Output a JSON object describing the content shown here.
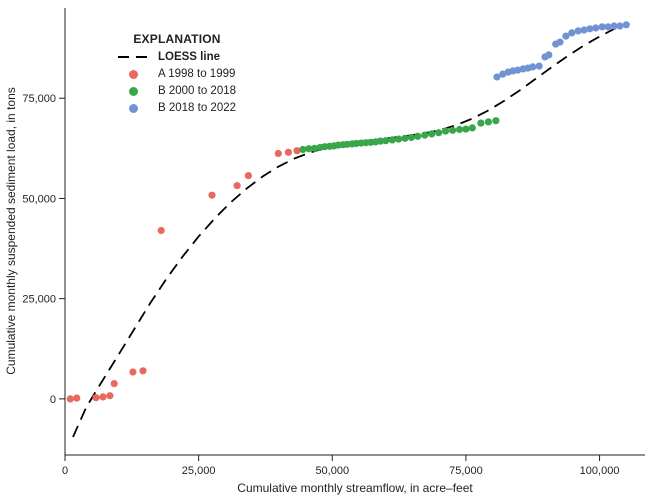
{
  "legend": {
    "title": "EXPLANATION",
    "items": [
      {
        "label": "LOESS line",
        "swatch": "dashed-line"
      },
      {
        "label": "A 1998 to 1999",
        "swatch": "dot"
      },
      {
        "label": "B 2000 to 2018",
        "swatch": "dot"
      },
      {
        "label": "B 2018 to 2022",
        "swatch": "dot"
      }
    ]
  },
  "chart_data": {
    "type": "scatter",
    "title": "",
    "xlabel": "Cumulative monthly streamflow, in acre–feet",
    "ylabel": "Cumulative monthly suspended sediment load, in tons",
    "xlim": [
      0,
      108500
    ],
    "ylim": [
      -14000,
      97500
    ],
    "grid": false,
    "legend_position": "top-left-inside",
    "x_ticks": [
      {
        "value": 0,
        "label": "0"
      },
      {
        "value": 25000,
        "label": "25,000"
      },
      {
        "value": 50000,
        "label": "50,000"
      },
      {
        "value": 75000,
        "label": "75,000"
      },
      {
        "value": 100000,
        "label": "100,000"
      }
    ],
    "y_ticks": [
      {
        "value": 0,
        "label": "0"
      },
      {
        "value": 25000,
        "label": "25,000"
      },
      {
        "value": 50000,
        "label": "50,000"
      },
      {
        "value": 75000,
        "label": "75,000"
      }
    ],
    "series": [
      {
        "name": "LOESS line",
        "type": "line",
        "style": "dashed",
        "color": "#000000",
        "points": [
          [
            1500,
            -9500
          ],
          [
            4000,
            -2000
          ],
          [
            7000,
            4500
          ],
          [
            10000,
            11000
          ],
          [
            13000,
            17500
          ],
          [
            16000,
            24000
          ],
          [
            19000,
            30000
          ],
          [
            22000,
            35500
          ],
          [
            25000,
            40500
          ],
          [
            28000,
            45000
          ],
          [
            31000,
            49000
          ],
          [
            34000,
            52500
          ],
          [
            37000,
            55500
          ],
          [
            40000,
            58000
          ],
          [
            43000,
            60000
          ],
          [
            46000,
            61500
          ],
          [
            49000,
            62700
          ],
          [
            52000,
            63500
          ],
          [
            55000,
            64100
          ],
          [
            58000,
            64600
          ],
          [
            61000,
            65100
          ],
          [
            64000,
            65600
          ],
          [
            67000,
            66200
          ],
          [
            70000,
            67000
          ],
          [
            73000,
            68200
          ],
          [
            76000,
            69800
          ],
          [
            79000,
            71800
          ],
          [
            82000,
            74200
          ],
          [
            85000,
            76900
          ],
          [
            88000,
            79800
          ],
          [
            91000,
            82700
          ],
          [
            94000,
            85500
          ],
          [
            97000,
            88100
          ],
          [
            100000,
            90400
          ],
          [
            102500,
            92100
          ],
          [
            104500,
            93300
          ]
        ]
      },
      {
        "name": "A 1998 to 1999",
        "type": "scatter",
        "color": "#e8695f",
        "points": [
          [
            1000,
            0
          ],
          [
            2200,
            200
          ],
          [
            5800,
            300
          ],
          [
            7100,
            500
          ],
          [
            8400,
            800
          ],
          [
            9200,
            3800
          ],
          [
            12700,
            6700
          ],
          [
            14600,
            7000
          ],
          [
            18000,
            42000
          ],
          [
            27500,
            50800
          ],
          [
            32200,
            53200
          ],
          [
            34300,
            55700
          ],
          [
            39900,
            61200
          ],
          [
            41800,
            61500
          ],
          [
            43400,
            61900
          ]
        ]
      },
      {
        "name": "B 2000 to 2018",
        "type": "scatter",
        "color": "#3aa64a",
        "points": [
          [
            44500,
            62200
          ],
          [
            45600,
            62400
          ],
          [
            46700,
            62500
          ],
          [
            47700,
            62700
          ],
          [
            48600,
            62900
          ],
          [
            49500,
            63000
          ],
          [
            50300,
            63100
          ],
          [
            51100,
            63300
          ],
          [
            52000,
            63400
          ],
          [
            52800,
            63500
          ],
          [
            53700,
            63600
          ],
          [
            54500,
            63700
          ],
          [
            55400,
            63800
          ],
          [
            56300,
            63900
          ],
          [
            57200,
            64000
          ],
          [
            58100,
            64100
          ],
          [
            59000,
            64300
          ],
          [
            60000,
            64400
          ],
          [
            61200,
            64600
          ],
          [
            62400,
            64800
          ],
          [
            63600,
            65000
          ],
          [
            64800,
            65200
          ],
          [
            66000,
            65500
          ],
          [
            67300,
            65800
          ],
          [
            68600,
            66100
          ],
          [
            69900,
            66400
          ],
          [
            71200,
            66800
          ],
          [
            72500,
            67000
          ],
          [
            73800,
            67200
          ],
          [
            75000,
            67300
          ],
          [
            76200,
            67600
          ],
          [
            77800,
            68800
          ],
          [
            79200,
            69100
          ],
          [
            80600,
            69400
          ]
        ]
      },
      {
        "name": "B 2018 to 2022",
        "type": "scatter",
        "color": "#7193d3",
        "points": [
          [
            80800,
            80300
          ],
          [
            81900,
            81000
          ],
          [
            82900,
            81500
          ],
          [
            83800,
            81800
          ],
          [
            84700,
            82000
          ],
          [
            85700,
            82300
          ],
          [
            86600,
            82500
          ],
          [
            87500,
            82800
          ],
          [
            88700,
            83000
          ],
          [
            89800,
            85300
          ],
          [
            90500,
            85800
          ],
          [
            91800,
            88500
          ],
          [
            92600,
            89000
          ],
          [
            93700,
            90500
          ],
          [
            94800,
            91300
          ],
          [
            96000,
            91800
          ],
          [
            97100,
            92000
          ],
          [
            98200,
            92300
          ],
          [
            99300,
            92500
          ],
          [
            100500,
            92800
          ],
          [
            101600,
            92800
          ],
          [
            102700,
            93000
          ],
          [
            103800,
            93000
          ],
          [
            105000,
            93300
          ]
        ]
      }
    ]
  }
}
